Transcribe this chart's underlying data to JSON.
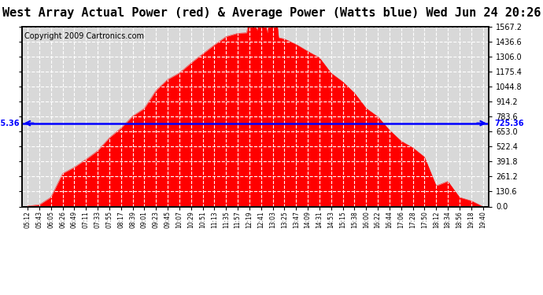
{
  "title": "West Array Actual Power (red) & Average Power (Watts blue) Wed Jun 24 20:26",
  "copyright": "Copyright 2009 Cartronics.com",
  "average_power": 725.36,
  "y_max": 1567.2,
  "y_min": 0.0,
  "y_ticks": [
    0.0,
    130.6,
    261.2,
    391.8,
    522.4,
    653.0,
    783.6,
    914.2,
    1044.8,
    1175.4,
    1306.0,
    1436.6,
    1567.2
  ],
  "x_labels": [
    "05:12",
    "05:43",
    "06:05",
    "06:26",
    "06:49",
    "07:11",
    "07:33",
    "07:55",
    "08:17",
    "08:39",
    "09:01",
    "09:23",
    "09:45",
    "10:07",
    "10:29",
    "10:51",
    "11:13",
    "11:35",
    "11:57",
    "12:19",
    "12:41",
    "13:03",
    "13:25",
    "13:47",
    "14:09",
    "14:31",
    "14:53",
    "15:15",
    "15:38",
    "16:00",
    "16:22",
    "16:44",
    "17:06",
    "17:28",
    "17:50",
    "18:12",
    "18:34",
    "18:56",
    "19:18",
    "19:40"
  ],
  "bg_color": "#ffffff",
  "fill_color": "#ff0000",
  "line_color": "#0000ff",
  "grid_color": "#ffffff",
  "title_fontsize": 11,
  "copyright_fontsize": 7
}
